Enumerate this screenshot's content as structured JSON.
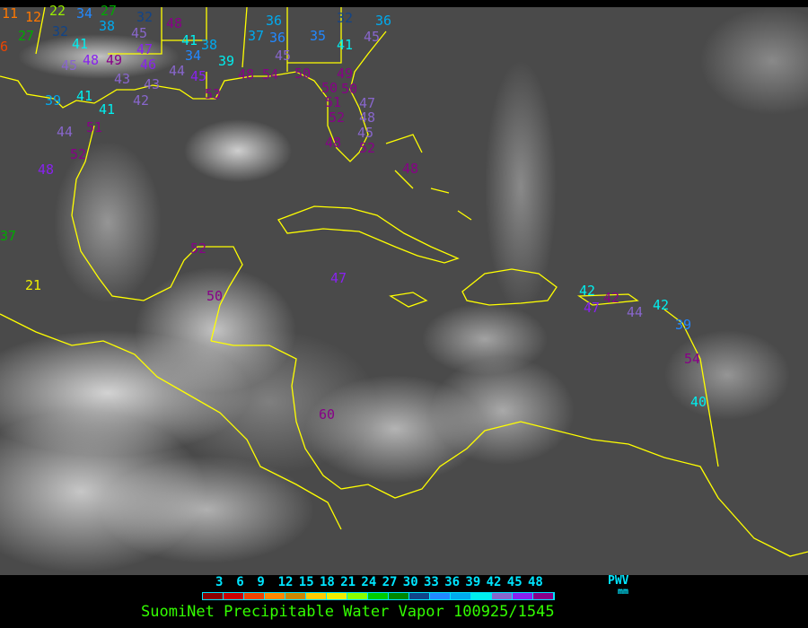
{
  "title": "SuomiNet Precipitable Water Vapor 100925/1545",
  "legend": {
    "unit_label": "PWV",
    "unit": "mm",
    "ticks": [
      "3",
      "6",
      "9",
      "12",
      "15",
      "18",
      "21",
      "24",
      "27",
      "30",
      "33",
      "36",
      "39",
      "42",
      "45",
      "48"
    ],
    "colors": [
      "#8b0000",
      "#cc0000",
      "#ee4400",
      "#ff8800",
      "#cc8800",
      "#ffcc00",
      "#eeee00",
      "#88ff00",
      "#00cc00",
      "#008800",
      "#114488",
      "#2288ff",
      "#00aaee",
      "#00eeee",
      "#8866cc",
      "#8822ee",
      "#880088"
    ]
  },
  "map_colors": {
    "coastline": "#ffff00",
    "background": "#4a4a4a"
  },
  "stations": [
    "11",
    "12",
    "22",
    "27",
    "32",
    "48",
    "6",
    "27",
    "32",
    "34",
    "38",
    "45",
    "41",
    "48",
    "49",
    "45",
    "47",
    "46",
    "43",
    "43",
    "42",
    "44",
    "41",
    "38",
    "34",
    "39",
    "45",
    "53",
    "48",
    "54",
    "37",
    "36",
    "36",
    "45",
    "35",
    "32",
    "41",
    "36",
    "45",
    "50",
    "49",
    "50",
    "50",
    "51",
    "47",
    "48",
    "52",
    "45",
    "48",
    "52",
    "39",
    "41",
    "41",
    "51",
    "44",
    "52",
    "48",
    "37",
    "21",
    "52",
    "50",
    "48",
    "47",
    "60",
    "42",
    "47",
    "42",
    "44",
    "42",
    "39",
    "54",
    "40"
  ]
}
